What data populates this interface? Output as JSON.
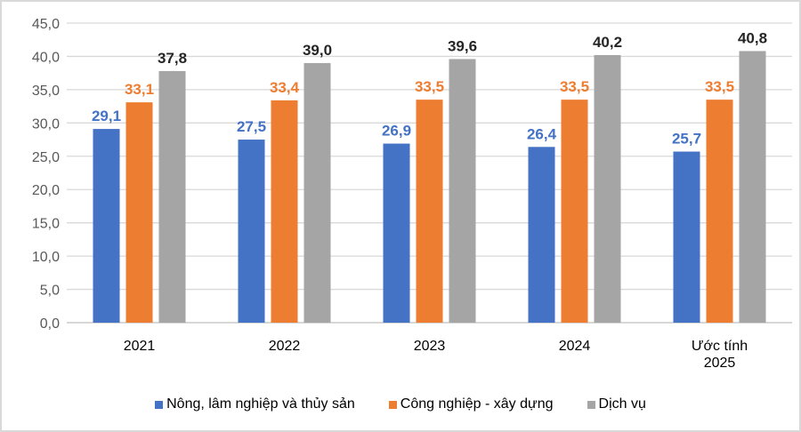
{
  "chart_data": {
    "type": "bar",
    "categories": [
      "2021",
      "2022",
      "2023",
      "2024",
      "Ước tính 2025"
    ],
    "series": [
      {
        "name": "Nông, lâm nghiệp và thủy sản",
        "values": [
          29.1,
          27.5,
          26.9,
          26.4,
          25.7
        ],
        "labels": [
          "29,1",
          "27,5",
          "26,9",
          "26,4",
          "25,7"
        ],
        "color": "#4472c4",
        "label_color": "#4472c4"
      },
      {
        "name": "Công nghiệp - xây dựng",
        "values": [
          33.1,
          33.4,
          33.5,
          33.5,
          33.5
        ],
        "labels": [
          "33,1",
          "33,4",
          "33,5",
          "33,5",
          "33,5"
        ],
        "color": "#ed7d31",
        "label_color": "#ed7d31"
      },
      {
        "name": "Dịch vụ",
        "values": [
          37.8,
          39.0,
          39.6,
          40.2,
          40.8
        ],
        "labels": [
          "37,8",
          "39,0",
          "39,6",
          "40,2",
          "40,8"
        ],
        "color": "#a5a5a5",
        "label_color": "#262626"
      }
    ],
    "yticks": [
      "0,0",
      "5,0",
      "10,0",
      "15,0",
      "20,0",
      "25,0",
      "30,0",
      "35,0",
      "40,0",
      "45,0"
    ],
    "ylim": [
      0,
      45
    ],
    "grid": true,
    "legend": "bottom",
    "title": "",
    "xlabel": "",
    "ylabel": ""
  }
}
